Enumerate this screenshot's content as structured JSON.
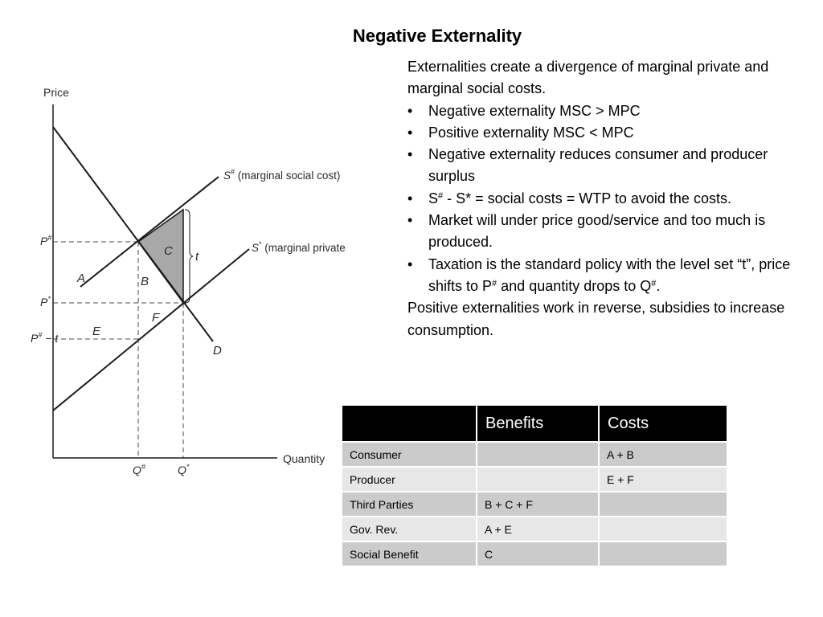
{
  "title": "Negative Externality",
  "intro": "Externalities create a divergence of marginal private and marginal social costs.",
  "bullets": [
    "Negative externality  MSC > MPC",
    "Positive externality MSC < MPC",
    "Negative externality reduces consumer and producer surplus",
    {
      "pre": "S",
      "sup": "#",
      "post": " - S* = social costs = WTP to avoid the costs."
    },
    "Market will under price good/service and too much is produced.",
    {
      "pre": "Taxation is the standard policy with the level set “t”, price shifts to P",
      "sup": "#",
      "mid": " and quantity drops to Q",
      "sup2": "#",
      "post": "."
    }
  ],
  "bullet_glyph": "•",
  "outro": "Positive externalities work in reverse, subsidies to increase consumption.",
  "diagram": {
    "y_axis_label": "Price",
    "x_axis_label": "Quantity",
    "curve_social": {
      "symbol": "S",
      "sup": "#",
      "text": " (marginal social cost)"
    },
    "curve_private": {
      "symbol": "S",
      "sup": "*",
      "text": " (marginal private cost)"
    },
    "demand_label": "D",
    "tax_label": "t",
    "area_labels": {
      "A": "A",
      "B": "B",
      "C": "C",
      "E": "E",
      "F": "F"
    },
    "price_labels": {
      "p_hash": {
        "base": "P",
        "sup": "#"
      },
      "p_star": {
        "base": "P",
        "sup": "*"
      },
      "p_hash_minus_t": {
        "base": "P",
        "sup": "#",
        "tail": " − t"
      }
    },
    "quantity_labels": {
      "q_hash": {
        "base": "Q",
        "sup": "#"
      },
      "q_star": {
        "base": "Q",
        "sup": "*"
      }
    },
    "colors": {
      "line": "#1a1a1a",
      "dash": "#4a4a4a",
      "shade": "#a8a8a8"
    }
  },
  "table": {
    "headers": [
      "",
      "Benefits",
      "Costs"
    ],
    "rows": [
      {
        "group": "Consumer",
        "benefits": "",
        "costs": "A + B"
      },
      {
        "group": "Producer",
        "benefits": "",
        "costs": "E + F"
      },
      {
        "group": "Third Parties",
        "benefits": "B + C + F",
        "costs": ""
      },
      {
        "group": "Gov. Rev.",
        "benefits": "A + E",
        "costs": ""
      },
      {
        "group": "Social Benefit",
        "benefits": "C",
        "costs": ""
      }
    ],
    "colors": {
      "header_bg": "#000000",
      "row_dark": "#cbcbcb",
      "row_light": "#e7e7e7"
    }
  }
}
